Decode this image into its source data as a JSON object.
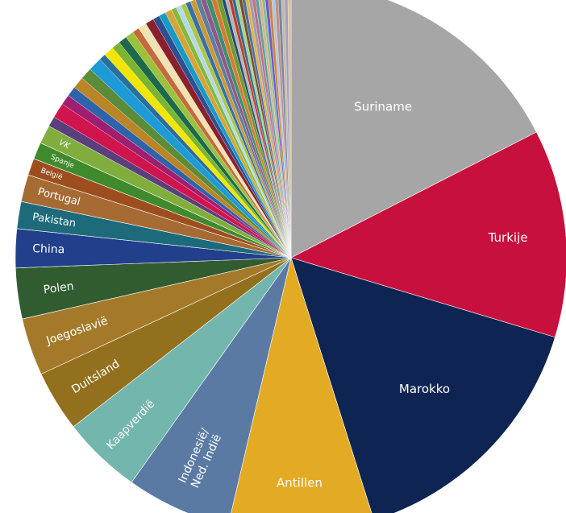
{
  "chart_data": {
    "type": "pie",
    "title": "",
    "start": "12 o'clock",
    "direction": "clockwise",
    "slices": [
      {
        "label": "Suriname",
        "value": 17.6,
        "color": "#a6a6a6"
      },
      {
        "label": "Turkije",
        "value": 12.3,
        "color": "#c8103e"
      },
      {
        "label": "Marokko",
        "value": 15.6,
        "color": "#0e2452"
      },
      {
        "label": "Antillen",
        "value": 8.6,
        "color": "#e3aa24"
      },
      {
        "label": "Indonesië/ Ned. Indië",
        "value": 6.2,
        "color": "#5a7aa4"
      },
      {
        "label": "Kaapverdië",
        "value": 4.7,
        "color": "#73b6ad"
      },
      {
        "label": "Duitsland",
        "value": 3.6,
        "color": "#93701e"
      },
      {
        "label": "Joegoslavië",
        "value": 3.4,
        "color": "#a47a2a"
      },
      {
        "label": "Polen",
        "value": 3.0,
        "color": "#315c30"
      },
      {
        "label": "China",
        "value": 2.3,
        "color": "#223f8c"
      },
      {
        "label": "Pakistan",
        "value": 1.6,
        "color": "#1d6b7a"
      },
      {
        "label": "Portugal",
        "value": 1.6,
        "color": "#a66a33"
      },
      {
        "label": "België",
        "value": 1.0,
        "color": "#9c4e1e"
      },
      {
        "label": "Spanje",
        "value": 1.0,
        "color": "#3f8a2c"
      },
      {
        "label": "VK",
        "value": 1.1,
        "color": "#7fae3c"
      },
      {
        "label": "",
        "value": 0.6,
        "color": "#5a3f7c"
      },
      {
        "label": "",
        "value": 0.9,
        "color": "#d0144d"
      },
      {
        "label": "",
        "value": 0.6,
        "color": "#a01e70"
      },
      {
        "label": "",
        "value": 0.6,
        "color": "#2f63a9"
      },
      {
        "label": "",
        "value": 0.7,
        "color": "#b98526"
      },
      {
        "label": "",
        "value": 0.7,
        "color": "#5a8c3a"
      },
      {
        "label": "",
        "value": 0.8,
        "color": "#1e9bd7"
      },
      {
        "label": "",
        "value": 0.4,
        "color": "#2a6e9a"
      },
      {
        "label": "",
        "value": 0.6,
        "color": "#f2e600"
      },
      {
        "label": "",
        "value": 0.5,
        "color": "#7bb52f"
      },
      {
        "label": "",
        "value": 0.5,
        "color": "#1c6a4a"
      },
      {
        "label": "",
        "value": 0.5,
        "color": "#9ac23c"
      },
      {
        "label": "",
        "value": 0.4,
        "color": "#c56a3d"
      },
      {
        "label": "",
        "value": 0.5,
        "color": "#efe3b2"
      },
      {
        "label": "",
        "value": 0.5,
        "color": "#8a1f2d"
      },
      {
        "label": "",
        "value": 0.4,
        "color": "#2f4f8f"
      },
      {
        "label": "",
        "value": 0.4,
        "color": "#189ac8"
      },
      {
        "label": "",
        "value": 0.4,
        "color": "#d6a53a"
      },
      {
        "label": "",
        "value": 0.3,
        "color": "#82b93e"
      },
      {
        "label": "",
        "value": 0.3,
        "color": "#b6d7e8"
      },
      {
        "label": "",
        "value": 0.3,
        "color": "#a9c84a"
      },
      {
        "label": "",
        "value": 0.3,
        "color": "#3a6ea5"
      },
      {
        "label": "",
        "value": 0.3,
        "color": "#c99a34"
      },
      {
        "label": "",
        "value": 0.3,
        "color": "#5e7e9e"
      },
      {
        "label": "",
        "value": 0.3,
        "color": "#8a5a8c"
      },
      {
        "label": "",
        "value": 0.3,
        "color": "#3d8f6b"
      },
      {
        "label": "",
        "value": 0.3,
        "color": "#d77a30"
      },
      {
        "label": "",
        "value": 0.3,
        "color": "#6e9c2e"
      },
      {
        "label": "",
        "value": 0.2,
        "color": "#254a7a"
      },
      {
        "label": "",
        "value": 0.2,
        "color": "#b3b3b3"
      },
      {
        "label": "",
        "value": 0.2,
        "color": "#c0392b"
      },
      {
        "label": "",
        "value": 0.2,
        "color": "#2d6f8e"
      },
      {
        "label": "",
        "value": 0.2,
        "color": "#a8d08d"
      },
      {
        "label": "",
        "value": 0.2,
        "color": "#7a4e2d"
      },
      {
        "label": "",
        "value": 0.2,
        "color": "#4a6fa5"
      },
      {
        "label": "",
        "value": 0.2,
        "color": "#e0b04a"
      },
      {
        "label": "",
        "value": 0.2,
        "color": "#9e9e9e"
      },
      {
        "label": "",
        "value": 0.2,
        "color": "#bf6f8f"
      },
      {
        "label": "",
        "value": 0.2,
        "color": "#5f9ea0"
      },
      {
        "label": "",
        "value": 0.2,
        "color": "#d2b48c"
      },
      {
        "label": "",
        "value": 0.2,
        "color": "#8fbc8f"
      },
      {
        "label": "",
        "value": 0.2,
        "color": "#6a5acd"
      },
      {
        "label": "",
        "value": 0.2,
        "color": "#cd853f"
      },
      {
        "label": "",
        "value": 0.2,
        "color": "#b0c4de"
      },
      {
        "label": "",
        "value": 0.2,
        "color": "#bc8f8f"
      },
      {
        "label": "",
        "value": 0.2,
        "color": "#778899"
      },
      {
        "label": "",
        "value": 0.2,
        "color": "#c8b6a6"
      },
      {
        "label": "",
        "value": 0.2,
        "color": "#a0a0c0"
      },
      {
        "label": "",
        "value": 0.2,
        "color": "#d8c0a0"
      }
    ]
  }
}
